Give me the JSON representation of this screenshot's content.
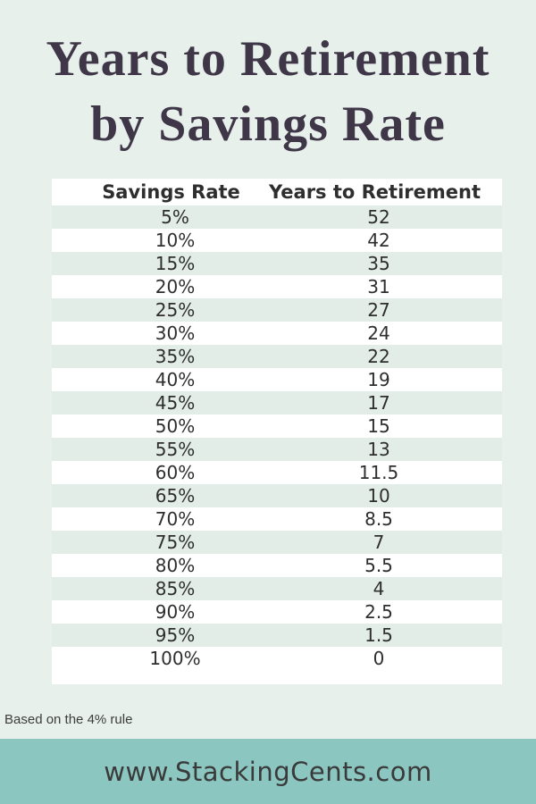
{
  "title": {
    "line1": "Years to Retirement",
    "line2": "by Savings Rate"
  },
  "table": {
    "headers": [
      "Savings Rate",
      "Years to Retirement"
    ],
    "rows": [
      [
        "5%",
        "52"
      ],
      [
        "10%",
        "42"
      ],
      [
        "15%",
        "35"
      ],
      [
        "20%",
        "31"
      ],
      [
        "25%",
        "27"
      ],
      [
        "30%",
        "24"
      ],
      [
        "35%",
        "22"
      ],
      [
        "40%",
        "19"
      ],
      [
        "45%",
        "17"
      ],
      [
        "50%",
        "15"
      ],
      [
        "55%",
        "13"
      ],
      [
        "60%",
        "11.5"
      ],
      [
        "65%",
        "10"
      ],
      [
        "70%",
        "8.5"
      ],
      [
        "75%",
        "7"
      ],
      [
        "80%",
        "5.5"
      ],
      [
        "85%",
        "4"
      ],
      [
        "90%",
        "2.5"
      ],
      [
        "95%",
        "1.5"
      ],
      [
        "100%",
        "0"
      ]
    ]
  },
  "footnote": "Based on the 4% rule",
  "footer": {
    "url": "www.StackingCents.com"
  },
  "colors": {
    "background": "#e7f0eb",
    "row_stripe": "#e3ede8",
    "row_white": "#ffffff",
    "title_text": "#3f3648",
    "table_text": "#2e2e2e",
    "footer_teal": "#8bc6c0",
    "footer_text": "#3a3a3a"
  },
  "chart_data": {
    "type": "table",
    "title": "Years to Retirement by Savings Rate",
    "columns": [
      "Savings Rate",
      "Years to Retirement"
    ],
    "savings_rate_pct": [
      5,
      10,
      15,
      20,
      25,
      30,
      35,
      40,
      45,
      50,
      55,
      60,
      65,
      70,
      75,
      80,
      85,
      90,
      95,
      100
    ],
    "years_to_retirement": [
      52,
      42,
      35,
      31,
      27,
      24,
      22,
      19,
      17,
      15,
      13,
      11.5,
      10,
      8.5,
      7,
      5.5,
      4,
      2.5,
      1.5,
      0
    ],
    "annotations": [
      "Based on the 4% rule"
    ],
    "source_text": "www.StackingCents.com"
  }
}
